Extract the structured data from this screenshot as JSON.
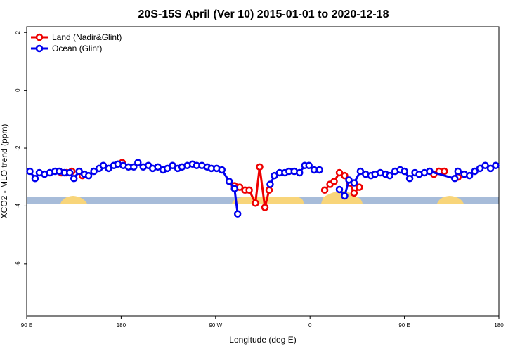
{
  "chart_data": {
    "type": "line",
    "title": "20S-15S April (Ver 10)   2015-01-01 to 2020-12-18",
    "x_label": "Longitude (deg E)",
    "y_label": "XCO2 - MLO trend (ppm)",
    "xlim": [
      90,
      540
    ],
    "xticks": [
      {
        "value": 90,
        "label": "90 E"
      },
      180,
      {
        "value": 270,
        "label": "90 W"
      },
      {
        "value": 360,
        "label": "0"
      },
      {
        "value": 450,
        "label": "90 E"
      },
      {
        "value": 540,
        "label": "180"
      }
    ],
    "ylim": [
      -7.8,
      2.2
    ],
    "yticks": [
      2,
      0,
      -2,
      -4,
      -6
    ],
    "legend": "top-left",
    "series": [
      {
        "name": "Land (Nadir&Glint)",
        "color": "#ee0000",
        "x": [
          123,
          128,
          133,
          null,
          143,
          null,
          181,
          null,
          288,
          293,
          298,
          302,
          308,
          312,
          317,
          321,
          null,
          374,
          379,
          383,
          388,
          393,
          398,
          402,
          407,
          null,
          478,
          483,
          488,
          null,
          501
        ],
        "values": [
          -2.85,
          -2.85,
          -2.8,
          null,
          -2.95,
          null,
          -2.5,
          null,
          -3.3,
          -3.35,
          -3.45,
          -3.45,
          -3.9,
          -2.65,
          -4.05,
          -3.45,
          null,
          -3.45,
          -3.25,
          -3.15,
          -2.85,
          -2.95,
          -3.2,
          -3.55,
          -3.35,
          null,
          -2.9,
          -2.8,
          -2.8,
          null,
          -3.0
        ]
      },
      {
        "name": "Ocean (Glint)",
        "color": "#0000ee",
        "x": [
          93,
          98,
          102,
          107,
          112,
          117,
          121,
          126,
          131,
          135,
          140,
          145,
          149,
          154,
          159,
          163,
          168,
          173,
          177,
          182,
          187,
          192,
          196,
          201,
          206,
          210,
          215,
          220,
          224,
          229,
          234,
          238,
          243,
          248,
          252,
          257,
          262,
          266,
          271,
          276,
          283,
          288,
          291,
          null,
          322,
          326,
          331,
          336,
          340,
          345,
          350,
          355,
          359,
          364,
          369,
          null,
          388,
          393,
          397,
          402,
          408,
          413,
          418,
          422,
          427,
          432,
          436,
          441,
          446,
          450,
          455,
          460,
          464,
          469,
          474,
          498,
          501,
          507,
          512,
          517,
          522,
          527,
          532,
          537
        ],
        "values": [
          -2.8,
          -3.05,
          -2.85,
          -2.9,
          -2.85,
          -2.8,
          -2.8,
          -2.85,
          -2.85,
          -3.05,
          -2.8,
          -2.9,
          -2.95,
          -2.8,
          -2.7,
          -2.6,
          -2.7,
          -2.6,
          -2.55,
          -2.6,
          -2.65,
          -2.65,
          -2.5,
          -2.65,
          -2.6,
          -2.7,
          -2.65,
          -2.75,
          -2.7,
          -2.6,
          -2.7,
          -2.65,
          -2.6,
          -2.55,
          -2.6,
          -2.6,
          -2.65,
          -2.7,
          -2.7,
          -2.75,
          -3.15,
          -3.4,
          -4.27,
          null,
          -3.25,
          -2.95,
          -2.85,
          -2.85,
          -2.8,
          -2.8,
          -2.85,
          -2.6,
          -2.6,
          -2.75,
          -2.75,
          null,
          -3.43,
          -3.65,
          -3.1,
          -3.2,
          -2.8,
          -2.9,
          -2.95,
          -2.9,
          -2.85,
          -2.9,
          -2.95,
          -2.8,
          -2.75,
          -2.8,
          -3.05,
          -2.85,
          -2.9,
          -2.85,
          -2.8,
          -3.05,
          -2.8,
          -2.9,
          -2.95,
          -2.8,
          -2.7,
          -2.6,
          -2.7,
          -2.6
        ]
      }
    ]
  }
}
